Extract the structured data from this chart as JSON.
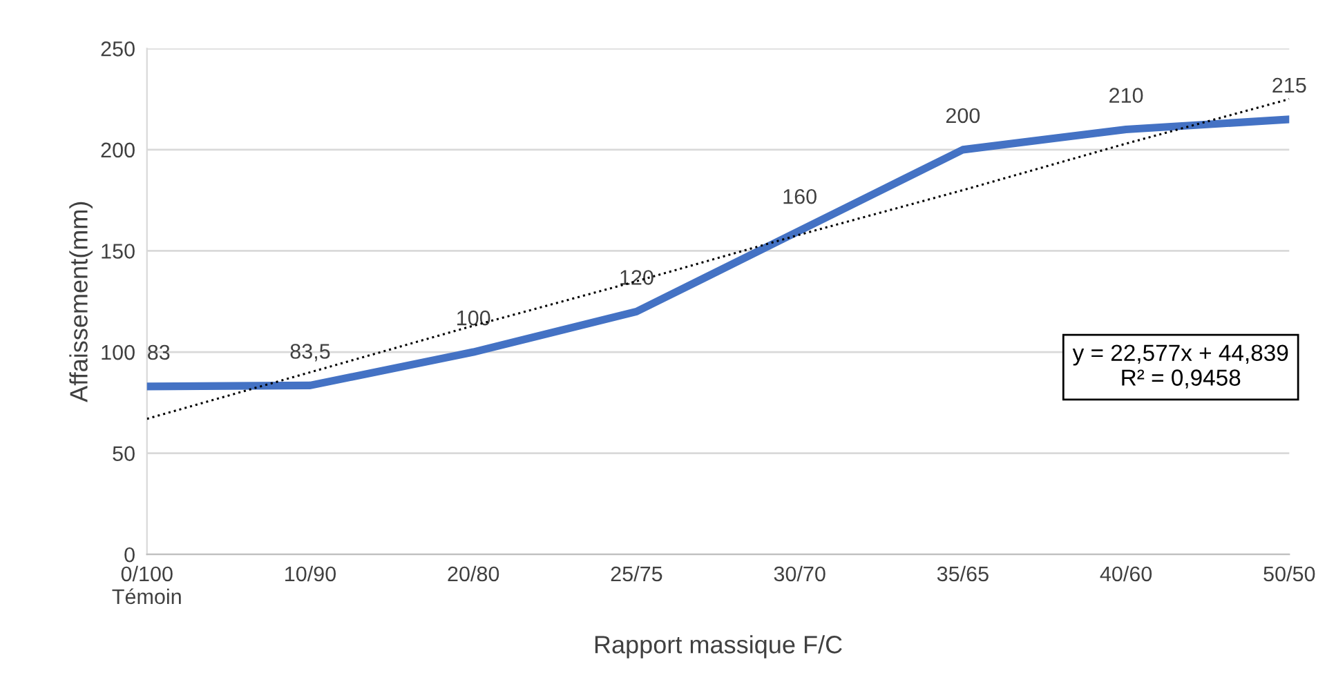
{
  "chart_data": {
    "type": "line",
    "xlabel": "Rapport massique F/C",
    "ylabel": "Affaissement(mm)",
    "categories": [
      "0/100\nTémoin",
      "10/90",
      "20/80",
      "25/75",
      "30/70",
      "35/65",
      "40/60",
      "50/50"
    ],
    "ylim": [
      0,
      250
    ],
    "yticks": [
      0,
      50,
      100,
      150,
      200,
      250
    ],
    "grid": "y",
    "legend": false,
    "series": [
      {
        "color": "#4472c4",
        "values": [
          83,
          83.5,
          100,
          120,
          160,
          200,
          210,
          215
        ],
        "value_labels": [
          "83",
          "83,5",
          "100",
          "120",
          "160",
          "200",
          "210",
          "215"
        ],
        "line_style": "solid"
      },
      {
        "color": "#000000",
        "values": [
          67,
          90,
          113,
          135,
          158,
          180,
          203,
          225
        ],
        "line_style": "dotted"
      }
    ],
    "annotations": [
      "y = 22,577x + 44,839\nR² = 0,9458"
    ]
  }
}
